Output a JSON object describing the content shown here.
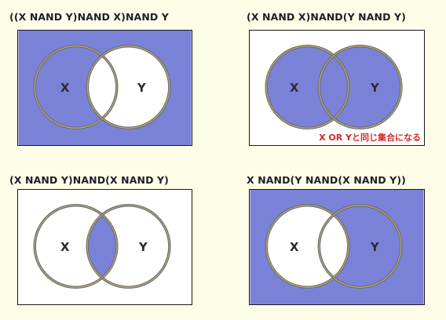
{
  "colors": {
    "fill": "#7a82d8",
    "empty": "#ffffff",
    "ring_outer": "#6e6e6e",
    "ring_inner": "#c2b47a",
    "background": "#fefee8",
    "note": "#d42a2a"
  },
  "panels": [
    {
      "title": "((X NAND Y)NAND X)NAND Y",
      "label_x": "X",
      "label_y": "Y",
      "shaded": {
        "outside": true,
        "x_only": true,
        "both": false,
        "y_only": false
      },
      "note": ""
    },
    {
      "title": "(X NAND X)NAND(Y NAND Y)",
      "label_x": "X",
      "label_y": "Y",
      "shaded": {
        "outside": false,
        "x_only": true,
        "both": true,
        "y_only": true
      },
      "note": "X OR Yと同じ集合になる"
    },
    {
      "title": "(X NAND Y)NAND(X NAND Y)",
      "label_x": "X",
      "label_y": "Y",
      "shaded": {
        "outside": false,
        "x_only": false,
        "both": true,
        "y_only": false
      },
      "note": ""
    },
    {
      "title": "X NAND(Y NAND(X NAND Y))",
      "label_x": "X",
      "label_y": "Y",
      "shaded": {
        "outside": true,
        "x_only": false,
        "both": false,
        "y_only": true
      },
      "note": ""
    }
  ]
}
